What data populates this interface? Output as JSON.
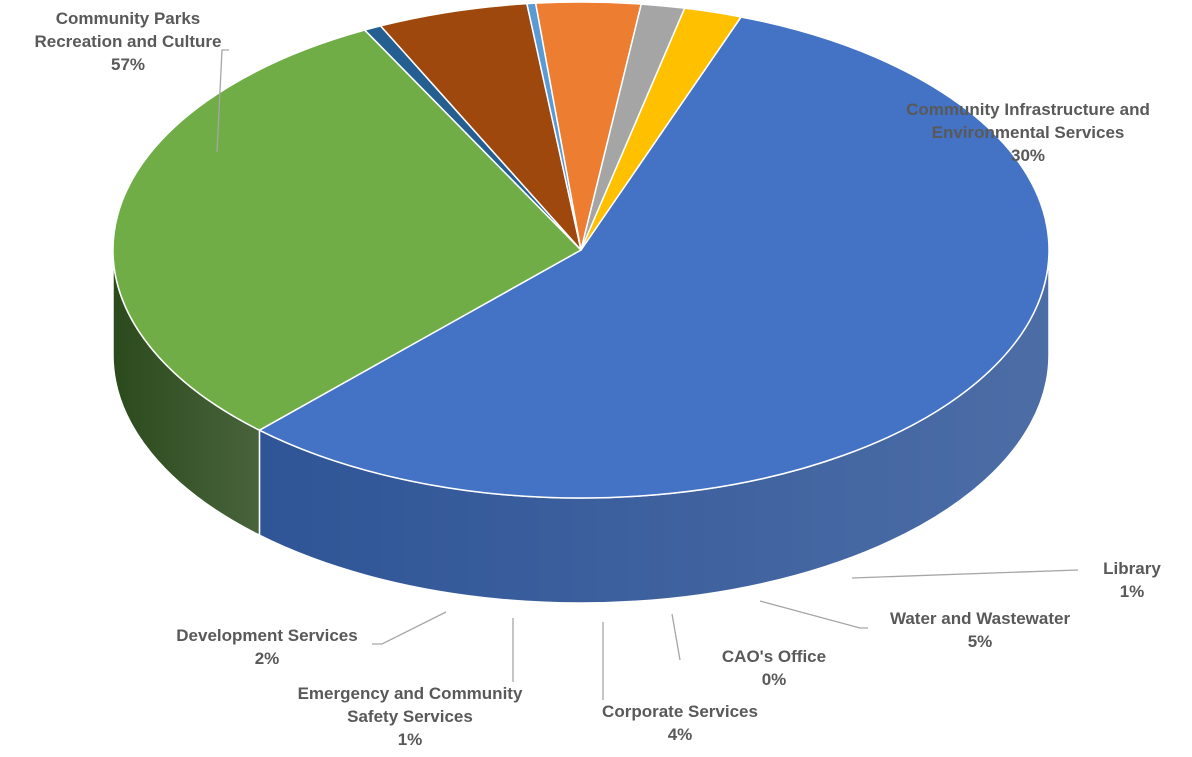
{
  "chart_data": {
    "type": "pie",
    "title": "",
    "slices": [
      {
        "label": "Community Parks\nRecreation and Culture",
        "percent_label": "57%",
        "value": 56.5,
        "color": "#4472c4",
        "side_color": "#2f5597"
      },
      {
        "label": "Community Infrastructure and\nEnvironmental Services",
        "percent_label": "30%",
        "value": 30.3,
        "color": "#70ad47",
        "side_color": "#2b4a1c"
      },
      {
        "label": "Library",
        "percent_label": "1%",
        "value": 0.6,
        "color": "#255e91",
        "side_color": "#0f2740"
      },
      {
        "label": "Water and Wastewater",
        "percent_label": "5%",
        "value": 5.2,
        "color": "#9e480e",
        "side_color": "#4a2008"
      },
      {
        "label": "CAO's Office",
        "percent_label": "0%",
        "value": 0.3,
        "color": "#5b9bd5",
        "side_color": "#2e4f6e"
      },
      {
        "label": "Corporate Services",
        "percent_label": "4%",
        "value": 3.6,
        "color": "#ed7d31",
        "side_color": "#7b3a16"
      },
      {
        "label": "Emergency and Community\nSafety Services",
        "percent_label": "1%",
        "value": 1.5,
        "color": "#a5a5a5",
        "side_color": "#5f5f5f"
      },
      {
        "label": "Development Services",
        "percent_label": "2%",
        "value": 2.0,
        "color": "#ffc000",
        "side_color": "#a37800"
      }
    ]
  }
}
